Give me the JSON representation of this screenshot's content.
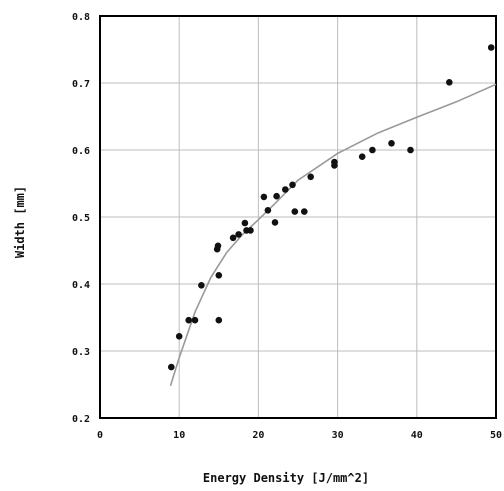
{
  "chart_data": {
    "type": "scatter",
    "title": "",
    "xlabel": "Energy Density [J/mm^2]",
    "ylabel": "Width [mm]",
    "xlim": [
      0,
      50
    ],
    "ylim": [
      0.2,
      0.8
    ],
    "x_ticks": [
      "0",
      "10",
      "20",
      "30",
      "40",
      "50"
    ],
    "y_ticks": [
      "0.2",
      "0.3",
      "0.4",
      "0.5",
      "0.6",
      "0.7",
      "0.8"
    ],
    "grid": true,
    "legend": "none",
    "colors": {
      "points": "#111111",
      "trend": "#999999",
      "grid": "#bdbdbd",
      "frame": "#000000"
    },
    "series": [
      {
        "kind": "points",
        "x": [
          9.0,
          10.0,
          11.2,
          12.0,
          12.8,
          14.8,
          14.9,
          15.0,
          15.0,
          16.8,
          17.5,
          18.3,
          18.5,
          19.0,
          20.7,
          21.2,
          22.1,
          22.3,
          23.4,
          24.3,
          24.6,
          25.8,
          26.6,
          29.6,
          29.6,
          33.1,
          34.4,
          36.8,
          39.2,
          44.1,
          49.4
        ],
        "y": [
          0.276,
          0.322,
          0.346,
          0.346,
          0.398,
          0.452,
          0.457,
          0.413,
          0.346,
          0.469,
          0.474,
          0.491,
          0.48,
          0.48,
          0.53,
          0.51,
          0.492,
          0.531,
          0.541,
          0.548,
          0.508,
          0.508,
          0.56,
          0.582,
          0.577,
          0.59,
          0.6,
          0.61,
          0.6,
          0.701,
          0.753
        ]
      },
      {
        "kind": "trendline",
        "x": [
          8.9,
          10,
          12,
          14,
          16,
          18,
          20,
          22,
          25,
          30,
          35,
          40,
          45,
          50
        ],
        "y": [
          0.248,
          0.29,
          0.358,
          0.41,
          0.447,
          0.474,
          0.496,
          0.519,
          0.555,
          0.595,
          0.625,
          0.649,
          0.672,
          0.698
        ]
      }
    ]
  }
}
